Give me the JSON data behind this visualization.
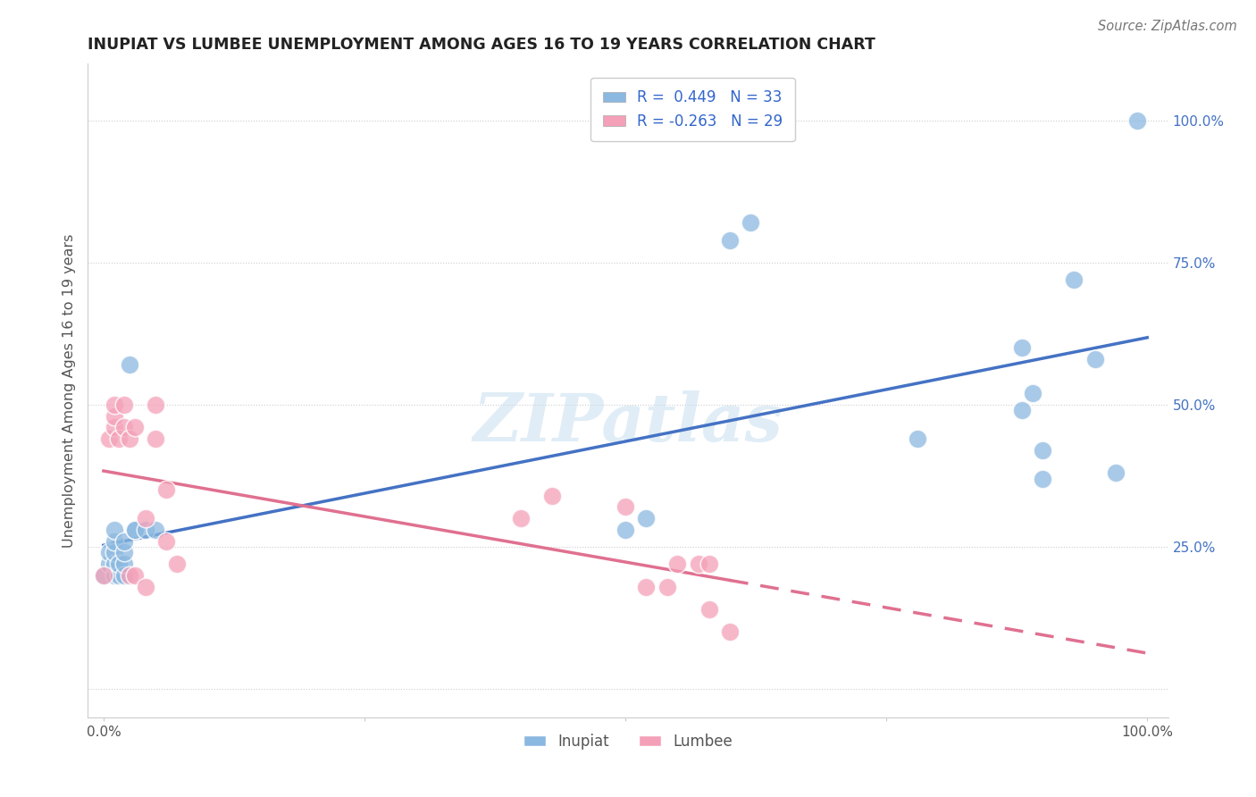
{
  "title": "INUPIAT VS LUMBEE UNEMPLOYMENT AMONG AGES 16 TO 19 YEARS CORRELATION CHART",
  "source": "Source: ZipAtlas.com",
  "ylabel": "Unemployment Among Ages 16 to 19 years",
  "r_inupiat": 0.449,
  "n_inupiat": 33,
  "r_lumbee": -0.263,
  "n_lumbee": 29,
  "color_inupiat": "#8bb8e0",
  "color_lumbee": "#f4a0b8",
  "trendline_inupiat": "#4472c4",
  "trendline_lumbee": "#e07090",
  "watermark": "ZIPatlas",
  "inupiat_x": [
    0.0,
    0.005,
    0.005,
    0.01,
    0.01,
    0.01,
    0.01,
    0.01,
    0.015,
    0.015,
    0.02,
    0.02,
    0.02,
    0.02,
    0.025,
    0.03,
    0.03,
    0.04,
    0.05,
    0.5,
    0.52,
    0.6,
    0.62,
    0.78,
    0.88,
    0.88,
    0.89,
    0.9,
    0.9,
    0.93,
    0.95,
    0.97,
    0.99
  ],
  "inupiat_y": [
    0.2,
    0.22,
    0.24,
    0.2,
    0.22,
    0.24,
    0.26,
    0.28,
    0.2,
    0.22,
    0.2,
    0.22,
    0.24,
    0.26,
    0.57,
    0.28,
    0.28,
    0.28,
    0.28,
    0.28,
    0.3,
    0.79,
    0.82,
    0.44,
    0.49,
    0.6,
    0.52,
    0.37,
    0.42,
    0.72,
    0.58,
    0.38,
    1.0
  ],
  "lumbee_x": [
    0.0,
    0.005,
    0.01,
    0.01,
    0.01,
    0.015,
    0.02,
    0.02,
    0.025,
    0.025,
    0.03,
    0.03,
    0.04,
    0.04,
    0.05,
    0.05,
    0.06,
    0.06,
    0.07,
    0.4,
    0.43,
    0.5,
    0.52,
    0.54,
    0.55,
    0.57,
    0.58,
    0.58,
    0.6
  ],
  "lumbee_y": [
    0.2,
    0.44,
    0.46,
    0.48,
    0.5,
    0.44,
    0.5,
    0.46,
    0.44,
    0.2,
    0.46,
    0.2,
    0.18,
    0.3,
    0.5,
    0.44,
    0.35,
    0.26,
    0.22,
    0.3,
    0.34,
    0.32,
    0.18,
    0.18,
    0.22,
    0.22,
    0.14,
    0.22,
    0.1
  ],
  "xlim": [
    -0.015,
    1.02
  ],
  "ylim": [
    -0.05,
    1.1
  ],
  "xticks": [
    0.0,
    0.25,
    0.5,
    0.75,
    1.0
  ],
  "xticklabels": [
    "0.0%",
    "",
    "",
    "",
    "100.0%"
  ],
  "ytick_positions": [
    0.0,
    0.25,
    0.5,
    0.75,
    1.0
  ],
  "yticklabels_right": [
    "",
    "25.0%",
    "50.0%",
    "75.0%",
    "100.0%"
  ]
}
